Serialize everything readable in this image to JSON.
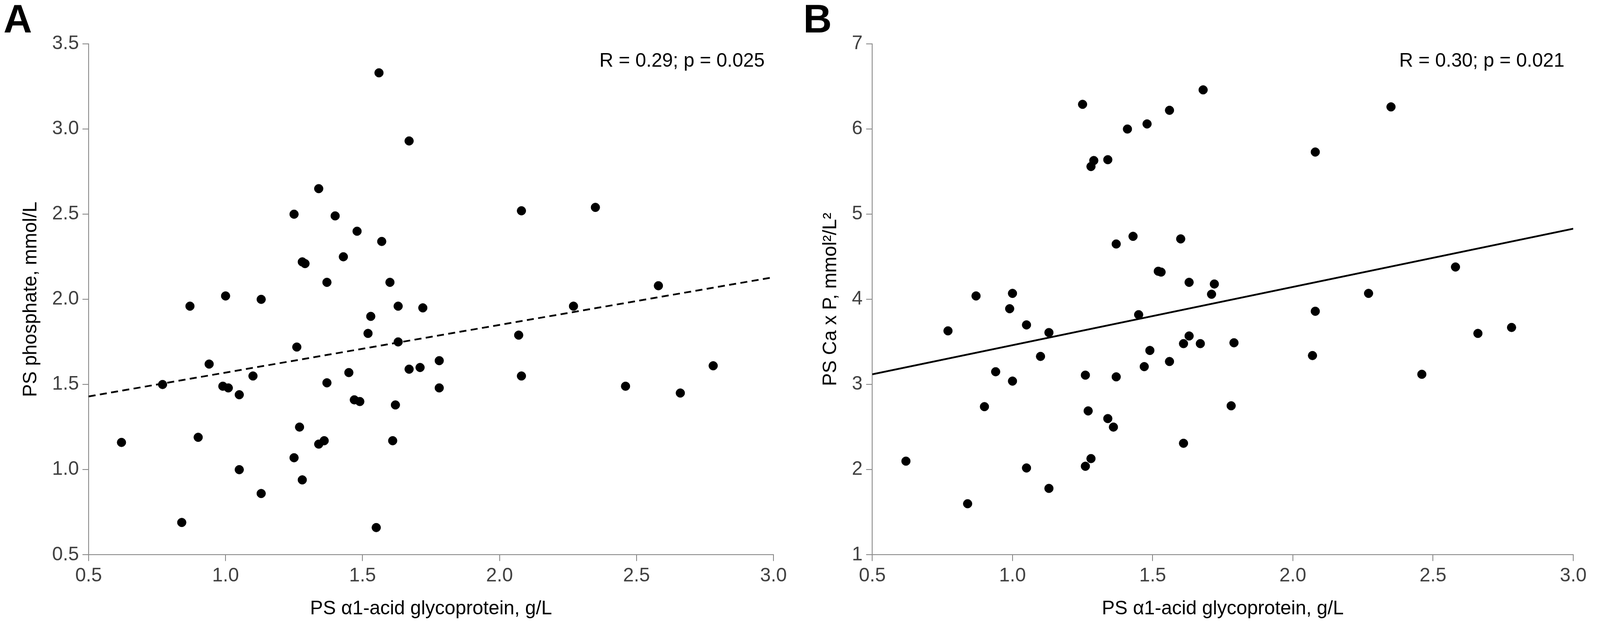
{
  "chart_data": [
    {
      "type": "scatter",
      "title": "A",
      "annotation": "R = 0.29; p = 0.025",
      "x_label": "PS α1-acid glycoprotein, g/L",
      "y_label": "PS phosphate, mmol/L",
      "xlim": [
        0.5,
        3.0
      ],
      "xticks": [
        0.5,
        {
          "value": 1,
          "label": "1.0"
        },
        1.5,
        {
          "value": 2,
          "label": "2.0"
        },
        2.5,
        {
          "value": 3,
          "label": "3.0"
        }
      ],
      "ylim": [
        0.5,
        3.5
      ],
      "yticks": [
        0.5,
        {
          "value": 1,
          "label": "1.0"
        },
        1.5,
        {
          "value": 2,
          "label": "2.0"
        },
        2.5,
        {
          "value": 3,
          "label": "3.0"
        },
        3.5
      ],
      "grid": false,
      "series": [
        {
          "type": "scatter",
          "color": "#000000",
          "marker": "circle",
          "x": [
            0.62,
            0.77,
            0.84,
            0.87,
            0.9,
            0.94,
            0.99,
            1.0,
            1.01,
            1.05,
            1.05,
            1.1,
            1.13,
            1.13,
            1.25,
            1.25,
            1.26,
            1.27,
            1.28,
            1.29,
            1.28,
            1.34,
            1.34,
            1.36,
            1.37,
            1.37,
            1.4,
            1.43,
            1.45,
            1.47,
            1.48,
            1.49,
            1.52,
            1.53,
            1.56,
            1.55,
            1.57,
            1.6,
            1.61,
            1.62,
            1.63,
            1.63,
            1.67,
            1.67,
            1.71,
            1.72,
            1.78,
            1.78,
            2.07,
            2.08,
            2.08,
            2.27,
            2.35,
            2.46,
            2.58,
            2.66,
            2.78
          ],
          "values": [
            1.16,
            1.5,
            0.69,
            1.96,
            1.19,
            1.62,
            1.49,
            2.02,
            1.48,
            1.44,
            1.0,
            1.55,
            2.0,
            0.86,
            2.5,
            1.07,
            1.72,
            1.25,
            2.22,
            2.21,
            0.94,
            2.65,
            1.15,
            1.17,
            2.1,
            1.51,
            2.49,
            2.25,
            1.57,
            1.41,
            2.4,
            1.4,
            1.8,
            1.9,
            3.33,
            0.66,
            2.34,
            2.1,
            1.17,
            1.38,
            1.96,
            1.75,
            2.93,
            1.59,
            1.6,
            1.95,
            1.64,
            1.48,
            1.79,
            2.52,
            1.55,
            1.96,
            2.54,
            1.49,
            2.08,
            1.45,
            1.61
          ]
        },
        {
          "type": "line",
          "color": "#000000",
          "line_style": "dashed",
          "x": [
            0.5,
            3.0
          ],
          "values": [
            1.43,
            2.13
          ]
        }
      ]
    },
    {
      "type": "scatter",
      "title": "B",
      "annotation": "R = 0.30; p = 0.021",
      "x_label": "PS α1-acid glycoprotein, g/L",
      "y_label": "PS Ca x P, mmol²/L²",
      "xlim": [
        0.5,
        3.0
      ],
      "xticks": [
        0.5,
        {
          "value": 1,
          "label": "1.0"
        },
        1.5,
        {
          "value": 2,
          "label": "2.0"
        },
        2.5,
        {
          "value": 3,
          "label": "3.0"
        }
      ],
      "ylim": [
        1,
        7
      ],
      "yticks": [
        1,
        2,
        3,
        4,
        5,
        6,
        7
      ],
      "grid": false,
      "series": [
        {
          "type": "scatter",
          "color": "#000000",
          "marker": "circle",
          "x": [
            0.62,
            0.77,
            0.84,
            0.87,
            0.9,
            0.94,
            0.99,
            1.0,
            1.0,
            1.05,
            1.05,
            1.1,
            1.13,
            1.13,
            1.25,
            1.26,
            1.26,
            1.27,
            1.28,
            1.29,
            1.28,
            1.34,
            1.34,
            1.36,
            1.37,
            1.37,
            1.41,
            1.43,
            1.45,
            1.47,
            1.48,
            1.49,
            1.52,
            1.53,
            1.56,
            1.56,
            1.6,
            1.61,
            1.61,
            1.63,
            1.63,
            1.67,
            1.68,
            1.71,
            1.72,
            1.78,
            1.79,
            2.07,
            2.08,
            2.08,
            2.27,
            2.35,
            2.46,
            2.58,
            2.66,
            2.78
          ],
          "values": [
            2.1,
            3.63,
            1.6,
            4.04,
            2.74,
            3.15,
            3.89,
            4.07,
            3.04,
            3.7,
            2.02,
            3.33,
            3.61,
            1.78,
            6.29,
            2.04,
            3.11,
            2.69,
            5.56,
            5.63,
            2.13,
            5.64,
            2.6,
            2.5,
            3.09,
            4.65,
            6.0,
            4.74,
            3.82,
            3.21,
            6.06,
            3.4,
            4.33,
            4.32,
            6.22,
            3.27,
            4.71,
            2.31,
            3.48,
            4.2,
            3.57,
            3.48,
            6.46,
            4.06,
            4.18,
            2.75,
            3.49,
            3.34,
            5.73,
            3.86,
            4.07,
            6.26,
            3.12,
            4.38,
            3.6,
            3.67
          ]
        },
        {
          "type": "line",
          "color": "#000000",
          "line_style": "solid",
          "x": [
            0.5,
            3.0
          ],
          "values": [
            3.12,
            4.83
          ]
        }
      ]
    }
  ]
}
